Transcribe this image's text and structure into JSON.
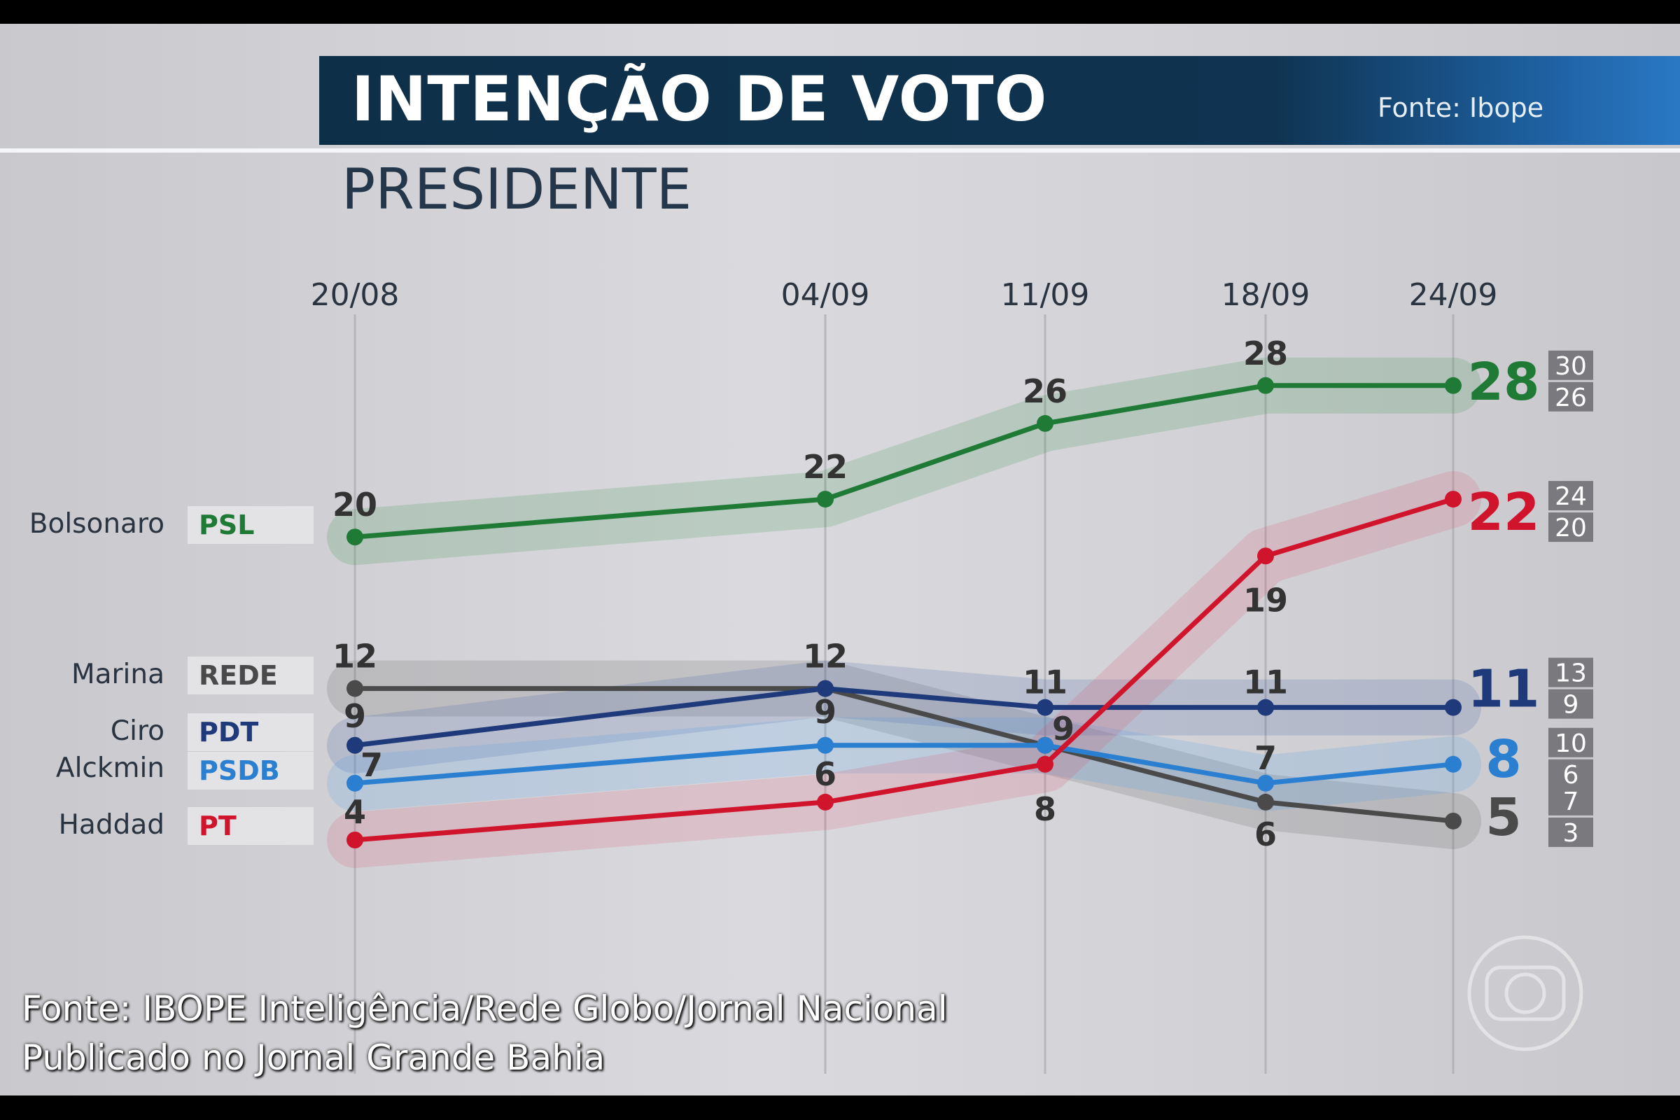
{
  "header": {
    "title": "INTENÇÃO DE VOTO",
    "source": "Fonte: Ibope",
    "subtitle": "PRESIDENTE"
  },
  "legend": [
    {
      "name": "Bolsonaro",
      "party": "PSL",
      "color": "#1e7a35"
    },
    {
      "name": "Marina",
      "party": "REDE",
      "color": "#4a4a4a"
    },
    {
      "name": "Ciro",
      "party": "PDT",
      "color": "#1f3a7a"
    },
    {
      "name": "Alckmin",
      "party": "PSDB",
      "color": "#2a7fd0"
    },
    {
      "name": "Haddad",
      "party": "PT",
      "color": "#d0142c"
    }
  ],
  "chart_data": {
    "type": "line",
    "categories": [
      "20/08",
      "04/09",
      "11/09",
      "18/09",
      "24/09"
    ],
    "series": [
      {
        "name": "Bolsonaro",
        "values": [
          20,
          22,
          26,
          28,
          28
        ],
        "range": [
          "30",
          "26"
        ],
        "color": "#1e7a35"
      },
      {
        "name": "Marina",
        "values": [
          12,
          12,
          9,
          6,
          5
        ],
        "range": [
          "7",
          "3"
        ],
        "color": "#4a4a4a"
      },
      {
        "name": "Ciro",
        "values": [
          9,
          12,
          11,
          11,
          11
        ],
        "range": [
          "13",
          "9"
        ],
        "color": "#1f3a7a"
      },
      {
        "name": "Alckmin",
        "values": [
          7,
          9,
          9,
          7,
          8
        ],
        "range": [
          "10",
          "6"
        ],
        "color": "#2a7fd0"
      },
      {
        "name": "Haddad",
        "values": [
          4,
          6,
          8,
          19,
          22
        ],
        "range": [
          "24",
          "20"
        ],
        "color": "#d0142c"
      }
    ],
    "ylabel": "",
    "xlabel": "",
    "grid": "vertical"
  },
  "footer": {
    "line1": "Fonte: IBOPE Inteligência/Rede Globo/Jornal Nacional",
    "line2": "Publicado no Jornal Grande Bahia"
  },
  "logo": "globo-logo"
}
